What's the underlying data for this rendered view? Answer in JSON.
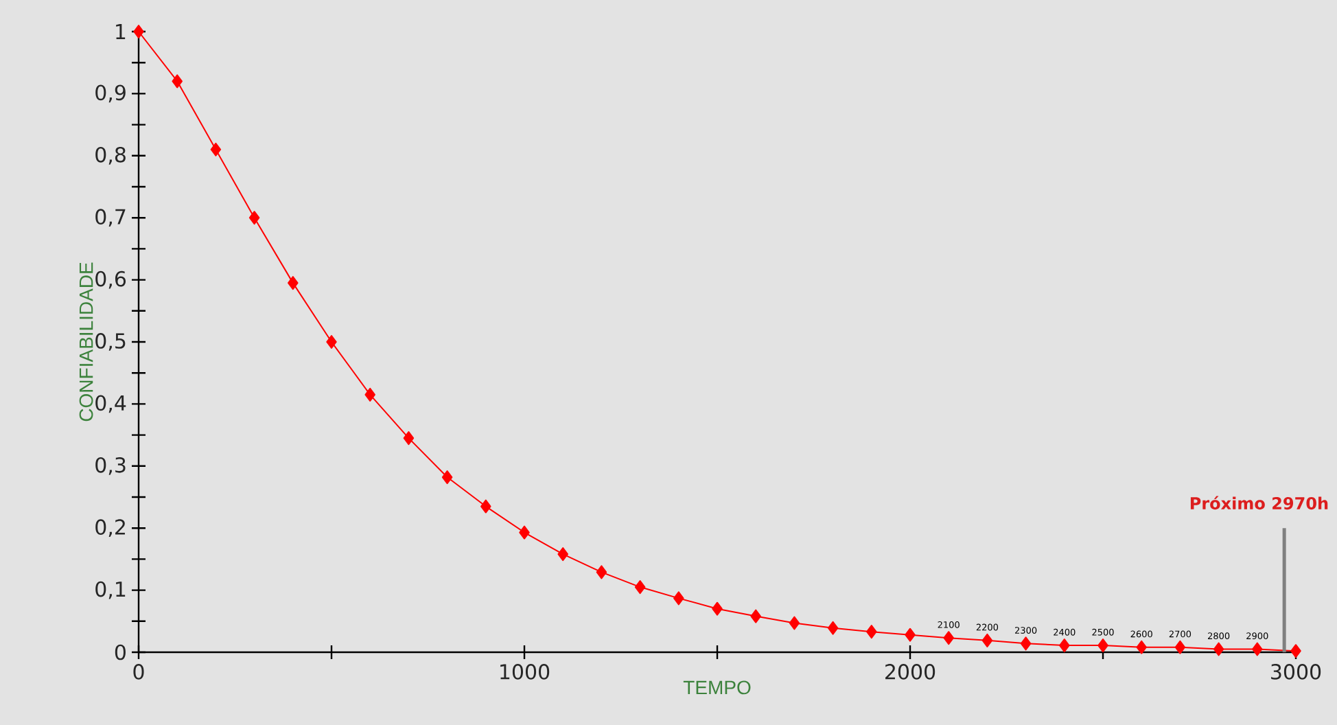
{
  "chart_data": {
    "type": "line",
    "xlabel": "TEMPO",
    "ylabel": "CONFIABILIDADE",
    "x": [
      0,
      100,
      200,
      300,
      400,
      500,
      600,
      700,
      800,
      900,
      1000,
      1100,
      1200,
      1300,
      1400,
      1500,
      1600,
      1700,
      1800,
      1900,
      2000,
      2100,
      2200,
      2300,
      2400,
      2500,
      2600,
      2700,
      2800,
      2900,
      3000
    ],
    "series": [
      {
        "color": "#ff0000",
        "values": [
          1,
          0.92,
          0.81,
          0.7,
          0.595,
          0.5,
          0.415,
          0.345,
          0.282,
          0.235,
          0.193,
          0.158,
          0.129,
          0.105,
          0.087,
          0.07,
          0.058,
          0.047,
          0.039,
          0.033,
          0.028,
          0.023,
          0.019,
          0.014,
          0.011,
          0.011,
          0.008,
          0.008,
          0.005,
          0.005,
          0.002
        ]
      }
    ],
    "marker": "diamond",
    "line_style": "solid",
    "xlim": [
      0,
      3000
    ],
    "ylim": [
      0,
      1
    ],
    "xticks": [
      0,
      {
        "value": 500,
        "label": null
      },
      1000,
      {
        "value": 1500,
        "label": null
      },
      2000,
      {
        "value": 2500,
        "label": null
      },
      3000
    ],
    "yticks": [
      {
        "value": 0,
        "label": "0"
      },
      {
        "value": 0.05,
        "label": null
      },
      {
        "value": 0.1,
        "label": "0,1"
      },
      {
        "value": 0.15,
        "label": null
      },
      {
        "value": 0.2,
        "label": "0,2"
      },
      {
        "value": 0.25,
        "label": null
      },
      {
        "value": 0.3,
        "label": "0,3"
      },
      {
        "value": 0.35,
        "label": null
      },
      {
        "value": 0.4,
        "label": "0,4"
      },
      {
        "value": 0.45,
        "label": null
      },
      {
        "value": 0.5,
        "label": "0,5"
      },
      {
        "value": 0.55,
        "label": null
      },
      {
        "value": 0.6,
        "label": "0,6"
      },
      {
        "value": 0.65,
        "label": null
      },
      {
        "value": 0.7,
        "label": "0,7"
      },
      {
        "value": 0.75,
        "label": null
      },
      {
        "value": 0.8,
        "label": "0,8"
      },
      {
        "value": 0.85,
        "label": null
      },
      {
        "value": 0.9,
        "label": "0,9"
      },
      {
        "value": 0.95,
        "label": null
      },
      {
        "value": 1,
        "label": "1"
      }
    ],
    "annotations": [
      {
        "text": "2100",
        "x": 2100,
        "y": 0.023
      },
      {
        "text": "2200",
        "x": 2200,
        "y": 0.019
      },
      {
        "text": "2300",
        "x": 2300,
        "y": 0.014
      },
      {
        "text": "2400",
        "x": 2400,
        "y": 0.011
      },
      {
        "text": "2500",
        "x": 2500,
        "y": 0.011
      },
      {
        "text": "2600",
        "x": 2600,
        "y": 0.008
      },
      {
        "text": "2700",
        "x": 2700,
        "y": 0.008
      },
      {
        "text": "2800",
        "x": 2800,
        "y": 0.005
      },
      {
        "text": "2900",
        "x": 2900,
        "y": 0.005
      }
    ],
    "ref_lines": [
      {
        "axis": "x",
        "value": 2970,
        "label": "Próximo 2970h",
        "color": "#808080"
      }
    ]
  }
}
